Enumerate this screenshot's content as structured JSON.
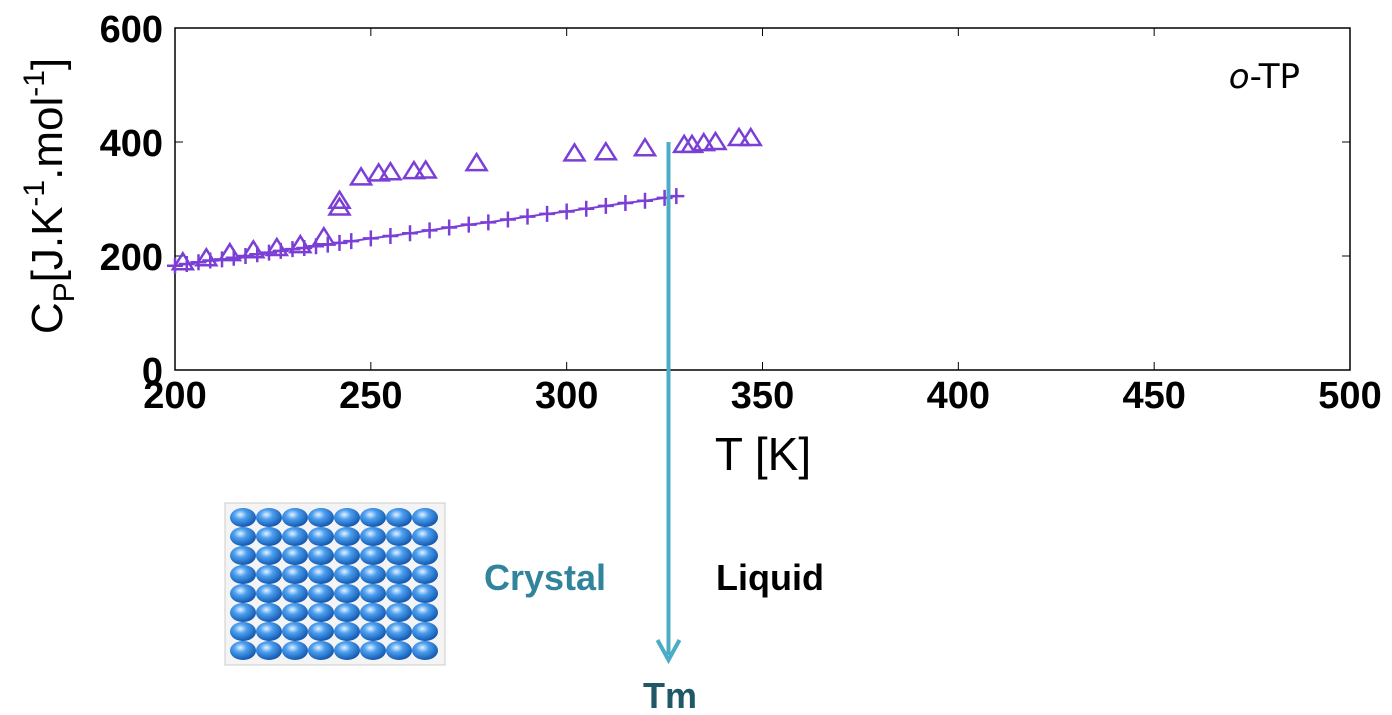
{
  "chart_data": {
    "type": "scatter",
    "xlim": [
      200,
      500
    ],
    "ylim": [
      0,
      600
    ],
    "xticks": [
      200,
      250,
      300,
      350,
      400,
      450,
      500
    ],
    "yticks": [
      0,
      200,
      400,
      600
    ],
    "xlabel": "T [K]",
    "ylabel_parts": [
      "C",
      "P",
      "[J.K",
      "-1",
      ".mol",
      "-1",
      "]"
    ],
    "annotation_parts": [
      "o",
      "-TP"
    ],
    "series": [
      {
        "marker": "triangle",
        "color": "#7b3fd6",
        "x": [
          202,
          208,
          214,
          220,
          226,
          232,
          238,
          242,
          242,
          247.5,
          252,
          255,
          261,
          264,
          277,
          302,
          310,
          320,
          330,
          332,
          335,
          338,
          344,
          347
        ],
        "values": [
          189,
          196,
          205,
          210,
          214,
          219,
          233,
          285,
          297,
          338,
          345,
          347,
          349,
          350,
          363,
          380,
          382,
          389,
          395,
          395,
          398,
          400,
          407,
          407
        ]
      },
      {
        "marker": "plus",
        "color": "#7b3fd6",
        "x": [
          200,
          203,
          206,
          209,
          212,
          215,
          218,
          221,
          224,
          227,
          230,
          233,
          236,
          239,
          242,
          245,
          250,
          255,
          260,
          265,
          270,
          275,
          280,
          285,
          290,
          295,
          300,
          305,
          310,
          315,
          320,
          325,
          328
        ],
        "values": [
          183,
          186,
          189,
          192,
          194,
          197,
          200,
          203,
          206,
          209,
          212,
          214,
          217,
          220,
          223,
          226,
          231,
          235,
          240,
          245,
          250,
          255,
          259,
          264,
          269,
          274,
          278,
          283,
          288,
          293,
          297,
          302,
          305
        ]
      }
    ],
    "tm_x": 326,
    "labels": {
      "crystal": "Crystal",
      "liquid": "Liquid",
      "tm": "Tm"
    }
  }
}
